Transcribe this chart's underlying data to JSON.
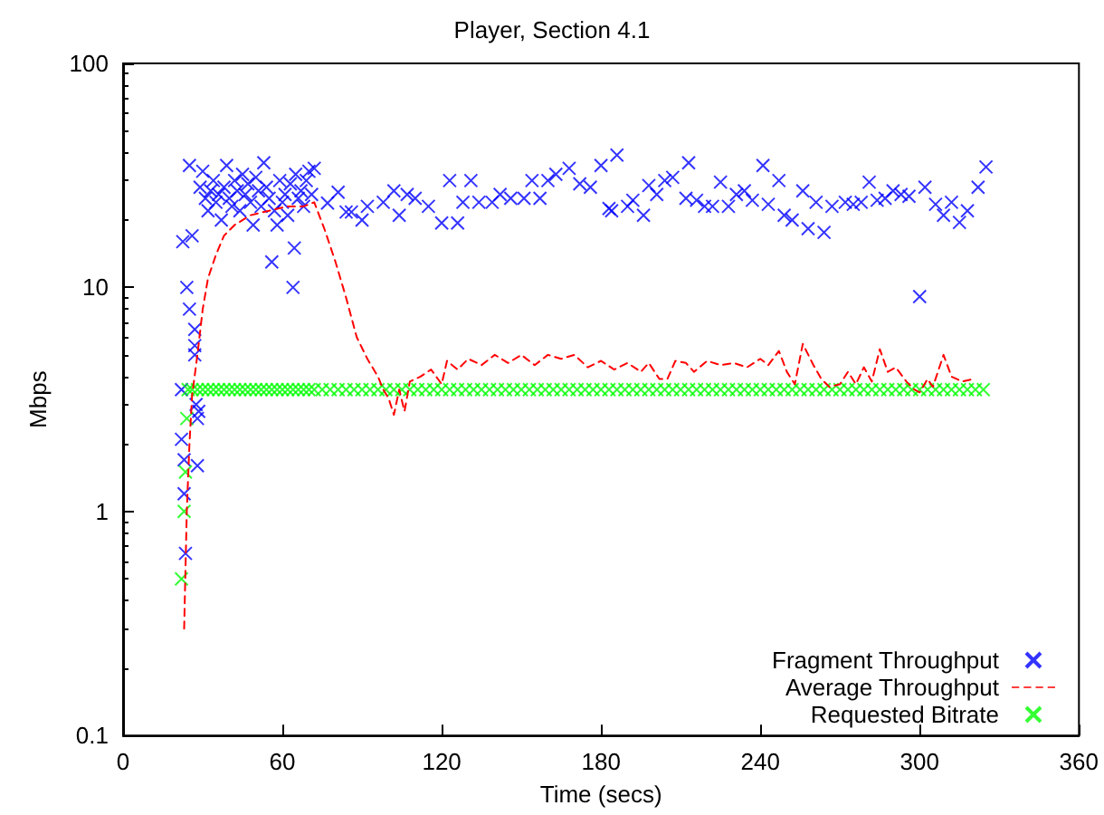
{
  "chart_data": {
    "type": "scatter",
    "title": "Player, Section 4.1",
    "xlabel": "Time (secs)",
    "ylabel": "Mbps",
    "xlim": [
      0,
      360
    ],
    "xticks": [
      0,
      60,
      120,
      180,
      240,
      300,
      360
    ],
    "ylim": [
      0.1,
      100
    ],
    "yticks": [
      0.1,
      1,
      10,
      100
    ],
    "log": "y",
    "grid": false,
    "legend": "bottom right",
    "series": [
      {
        "name": "Fragment Throughput",
        "marker": "cross",
        "color": "#0000ff",
        "x": [
          22,
          22,
          22.5,
          23,
          23,
          23.5,
          24,
          25,
          25,
          26,
          27,
          27,
          27,
          27.5,
          28,
          28,
          28.5,
          29,
          30,
          31,
          32,
          33,
          34,
          35,
          36,
          37,
          38,
          39,
          40,
          41,
          42,
          43,
          44,
          45,
          46,
          47,
          48,
          49,
          50,
          51,
          52,
          53,
          54,
          55,
          56,
          57,
          58,
          59,
          60,
          61,
          62,
          63,
          64,
          64.5,
          65,
          66,
          67,
          68,
          69,
          70,
          71,
          72,
          77,
          81,
          84,
          86,
          90,
          92,
          98,
          102,
          104,
          107,
          110,
          115,
          120,
          123,
          126,
          128,
          131,
          134,
          139,
          142,
          146,
          151,
          154,
          157,
          160,
          163,
          168,
          172,
          176,
          180,
          183,
          184,
          186,
          190,
          192,
          196,
          198,
          201,
          204,
          207,
          212,
          213,
          216,
          219,
          222,
          225,
          228,
          231,
          234,
          237,
          241,
          243,
          247,
          249,
          252,
          256,
          258,
          261,
          264,
          267,
          272,
          275,
          278,
          281,
          284,
          287,
          290,
          293,
          296,
          300,
          302,
          306,
          309,
          312,
          315,
          318,
          322,
          325
        ],
        "values": [
          3.5,
          2.1,
          16,
          1.7,
          1.2,
          0.65,
          10,
          8,
          35,
          17,
          6.5,
          5.5,
          5,
          3,
          2.6,
          1.6,
          2.8,
          28,
          33,
          25,
          22,
          27,
          30,
          24,
          26,
          20,
          28,
          35,
          25,
          23,
          30,
          27,
          22,
          32,
          26,
          29,
          24,
          19,
          31,
          27,
          23,
          36,
          28,
          25,
          13,
          22,
          19,
          30,
          24,
          26,
          21,
          29,
          10,
          15,
          32,
          25,
          27,
          23,
          30,
          33,
          26,
          34,
          23.8,
          26.6,
          21.7,
          21.7,
          20,
          23,
          24,
          27,
          21,
          26,
          25,
          23,
          19.4,
          30,
          19.4,
          24,
          30,
          24,
          24,
          26,
          25,
          25,
          30,
          25,
          30,
          32,
          34,
          29,
          28,
          35,
          22.5,
          22,
          39,
          23,
          24.5,
          21,
          28.5,
          26,
          30,
          31,
          25,
          36,
          24.5,
          23,
          23,
          29.5,
          23,
          26,
          27,
          24.5,
          35,
          23.5,
          30,
          21,
          20,
          27,
          18.3,
          24,
          17.6,
          23,
          24,
          23.5,
          24,
          29.5,
          24.5,
          25,
          27,
          26,
          25.5,
          9.1,
          28,
          23.5,
          21,
          24,
          19.5,
          22,
          28,
          34.5
        ]
      },
      {
        "name": "Average Throughput",
        "type": "line",
        "marker": "none",
        "line_style": "dashed",
        "color": "#ff0000",
        "x": [
          23,
          24,
          25,
          26,
          28,
          30,
          32,
          35,
          38,
          42,
          48,
          55,
          62,
          68,
          72,
          76,
          80,
          84,
          88,
          92,
          96,
          98,
          100,
          102,
          104,
          106,
          108,
          112,
          116,
          120,
          122,
          126,
          130,
          135,
          140,
          145,
          150,
          155,
          160,
          165,
          170,
          175,
          180,
          185,
          190,
          195,
          198,
          202,
          205,
          208,
          212,
          215,
          220,
          225,
          230,
          235,
          240,
          243,
          247,
          250,
          253,
          256,
          260,
          263,
          266,
          270,
          273,
          276,
          279,
          282,
          285,
          288,
          291,
          295,
          298,
          300,
          303,
          305,
          309,
          312,
          316,
          320
        ],
        "values": [
          0.3,
          1,
          2,
          3.3,
          5,
          8,
          11,
          14,
          17,
          19,
          21,
          22,
          23,
          23,
          24,
          18,
          13,
          9,
          6,
          4.8,
          4,
          3.5,
          3.2,
          2.7,
          3.5,
          2.8,
          3.8,
          4,
          4.3,
          3.7,
          4.7,
          4.3,
          4.8,
          4.5,
          5,
          4.6,
          5,
          4.5,
          5,
          4.8,
          5,
          4.4,
          4.7,
          4.3,
          4.6,
          4.2,
          4.6,
          3.9,
          3.9,
          4.7,
          4.6,
          4.2,
          4.7,
          4.5,
          4.6,
          4.4,
          4.8,
          4.5,
          5.2,
          4.2,
          3.7,
          5.6,
          4.5,
          3.9,
          3.6,
          3.7,
          4.2,
          3.7,
          4.4,
          3.8,
          5.3,
          4.2,
          4.4,
          3.8,
          3.5,
          3.4,
          3.9,
          3.6,
          5,
          4,
          3.8,
          3.9
        ]
      },
      {
        "name": "Requested Bitrate",
        "marker": "cross",
        "color": "#00ff00",
        "x": [
          22,
          23,
          23.5,
          24,
          24.5,
          26,
          28,
          30,
          32,
          34,
          36,
          38,
          40,
          42,
          44,
          46,
          48,
          50,
          52,
          54,
          56,
          58,
          60,
          62,
          64,
          66,
          68,
          70,
          72,
          75,
          78,
          81,
          84,
          87,
          90,
          93,
          96,
          99,
          102,
          105,
          108,
          111,
          114,
          117,
          120,
          123,
          126,
          129,
          132,
          135,
          138,
          141,
          144,
          147,
          150,
          153,
          156,
          159,
          162,
          165,
          168,
          171,
          174,
          177,
          180,
          183,
          186,
          189,
          192,
          195,
          198,
          201,
          204,
          207,
          210,
          213,
          216,
          219,
          222,
          225,
          228,
          231,
          234,
          237,
          240,
          243,
          246,
          249,
          252,
          255,
          258,
          261,
          264,
          267,
          270,
          273,
          276,
          279,
          282,
          285,
          288,
          291,
          294,
          297,
          300,
          303,
          306,
          309,
          312,
          315,
          318,
          321,
          324
        ],
        "values": [
          0.5,
          1,
          1.5,
          2.6,
          3.5,
          3.5,
          3.5,
          3.5,
          3.5,
          3.5,
          3.5,
          3.5,
          3.5,
          3.5,
          3.5,
          3.5,
          3.5,
          3.5,
          3.5,
          3.5,
          3.5,
          3.5,
          3.5,
          3.5,
          3.5,
          3.5,
          3.5,
          3.5,
          3.5,
          3.5,
          3.5,
          3.5,
          3.5,
          3.5,
          3.5,
          3.5,
          3.5,
          3.5,
          3.5,
          3.5,
          3.5,
          3.5,
          3.5,
          3.5,
          3.5,
          3.5,
          3.5,
          3.5,
          3.5,
          3.5,
          3.5,
          3.5,
          3.5,
          3.5,
          3.5,
          3.5,
          3.5,
          3.5,
          3.5,
          3.5,
          3.5,
          3.5,
          3.5,
          3.5,
          3.5,
          3.5,
          3.5,
          3.5,
          3.5,
          3.5,
          3.5,
          3.5,
          3.5,
          3.5,
          3.5,
          3.5,
          3.5,
          3.5,
          3.5,
          3.5,
          3.5,
          3.5,
          3.5,
          3.5,
          3.5,
          3.5,
          3.5,
          3.5,
          3.5,
          3.5,
          3.5,
          3.5,
          3.5,
          3.5,
          3.5,
          3.5,
          3.5,
          3.5,
          3.5,
          3.5,
          3.5,
          3.5,
          3.5,
          3.5,
          3.5,
          3.5,
          3.5,
          3.5,
          3.5,
          3.5,
          3.5,
          3.5,
          3.5
        ]
      }
    ]
  }
}
